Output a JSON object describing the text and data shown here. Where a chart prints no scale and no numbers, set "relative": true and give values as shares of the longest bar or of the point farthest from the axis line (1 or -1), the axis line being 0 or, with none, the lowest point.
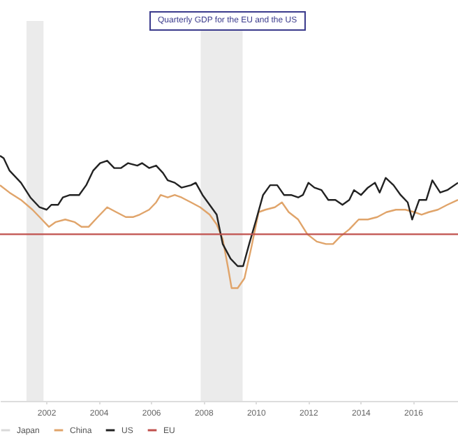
{
  "chart_data": {
    "type": "line",
    "title": "Quarterly GDP for the EU and the US",
    "relative": true,
    "legend": "bottom",
    "line_style": "solid",
    "marker": "none",
    "xlim": [
      2000.24,
      2017.72
    ],
    "xticks": [
      2002,
      2004,
      2006,
      2008,
      2010,
      2012,
      2014,
      2016
    ],
    "bands": [
      {
        "axis": "x",
        "from": 2001.25,
        "to": 2001.9,
        "color": "#ebebeb"
      },
      {
        "axis": "x",
        "from": 2007.9,
        "to": 2009.5,
        "color": "#ebebeb"
      }
    ],
    "series": [
      {
        "name": "Japan",
        "color": "#d9d9d9"
      },
      {
        "name": "China",
        "color": "#e0a46a",
        "x": [
          2000.24,
          2000.6,
          2001.04,
          2001.48,
          2001.75,
          2002.11,
          2002.37,
          2002.73,
          2003.08,
          2003.35,
          2003.62,
          2003.97,
          2004.33,
          2004.68,
          2005.04,
          2005.31,
          2005.57,
          2005.93,
          2006.2,
          2006.37,
          2006.64,
          2006.91,
          2007.17,
          2007.53,
          2007.88,
          2008.24,
          2008.51,
          2008.74,
          2008.95,
          2009.08,
          2009.31,
          2009.57,
          2009.84,
          2010.11,
          2010.37,
          2010.73,
          2011.0,
          2011.26,
          2011.62,
          2011.97,
          2012.33,
          2012.68,
          2012.95,
          2013.22,
          2013.57,
          2013.93,
          2014.28,
          2014.64,
          2014.99,
          2015.35,
          2015.71,
          2016.06,
          2016.33,
          2016.6,
          2016.95,
          2017.31,
          2017.72
        ],
        "values": [
          0.88,
          0.85,
          0.82,
          0.78,
          0.75,
          0.71,
          0.73,
          0.74,
          0.73,
          0.71,
          0.71,
          0.75,
          0.79,
          0.77,
          0.75,
          0.75,
          0.76,
          0.78,
          0.81,
          0.84,
          0.83,
          0.84,
          0.83,
          0.81,
          0.79,
          0.76,
          0.72,
          0.66,
          0.54,
          0.46,
          0.46,
          0.5,
          0.63,
          0.77,
          0.78,
          0.79,
          0.81,
          0.77,
          0.74,
          0.68,
          0.65,
          0.64,
          0.64,
          0.67,
          0.7,
          0.74,
          0.74,
          0.75,
          0.77,
          0.78,
          0.78,
          0.77,
          0.76,
          0.77,
          0.78,
          0.8,
          0.82
        ]
      },
      {
        "name": "US",
        "color": "#222222",
        "x": [
          2000.24,
          2000.38,
          2000.6,
          2001.04,
          2001.4,
          2001.75,
          2002.02,
          2002.2,
          2002.46,
          2002.64,
          2002.91,
          2003.26,
          2003.53,
          2003.8,
          2004.06,
          2004.33,
          2004.6,
          2004.86,
          2005.13,
          2005.48,
          2005.66,
          2005.93,
          2006.2,
          2006.46,
          2006.64,
          2006.91,
          2007.17,
          2007.53,
          2007.71,
          2007.97,
          2008.24,
          2008.51,
          2008.74,
          2009.04,
          2009.31,
          2009.52,
          2009.75,
          2010.02,
          2010.28,
          2010.55,
          2010.82,
          2011.08,
          2011.35,
          2011.62,
          2011.8,
          2012.01,
          2012.24,
          2012.51,
          2012.77,
          2013.04,
          2013.31,
          2013.57,
          2013.75,
          2014.02,
          2014.28,
          2014.55,
          2014.73,
          2014.96,
          2015.26,
          2015.53,
          2015.8,
          2015.97,
          2016.24,
          2016.51,
          2016.74,
          2017.04,
          2017.31,
          2017.72
        ],
        "values": [
          1.0,
          0.99,
          0.94,
          0.89,
          0.83,
          0.79,
          0.78,
          0.8,
          0.8,
          0.83,
          0.84,
          0.84,
          0.88,
          0.94,
          0.97,
          0.98,
          0.95,
          0.95,
          0.97,
          0.96,
          0.97,
          0.95,
          0.96,
          0.93,
          0.9,
          0.89,
          0.87,
          0.88,
          0.89,
          0.84,
          0.8,
          0.76,
          0.64,
          0.58,
          0.55,
          0.55,
          0.64,
          0.74,
          0.84,
          0.88,
          0.88,
          0.84,
          0.84,
          0.83,
          0.84,
          0.89,
          0.87,
          0.86,
          0.82,
          0.82,
          0.8,
          0.82,
          0.86,
          0.84,
          0.87,
          0.89,
          0.85,
          0.91,
          0.88,
          0.84,
          0.81,
          0.74,
          0.82,
          0.82,
          0.9,
          0.85,
          0.86,
          0.89
        ]
      },
      {
        "name": "EU",
        "color": "#c0504d",
        "x": [
          2000.24,
          2017.72
        ],
        "values": [
          0.68,
          0.68
        ]
      }
    ]
  }
}
